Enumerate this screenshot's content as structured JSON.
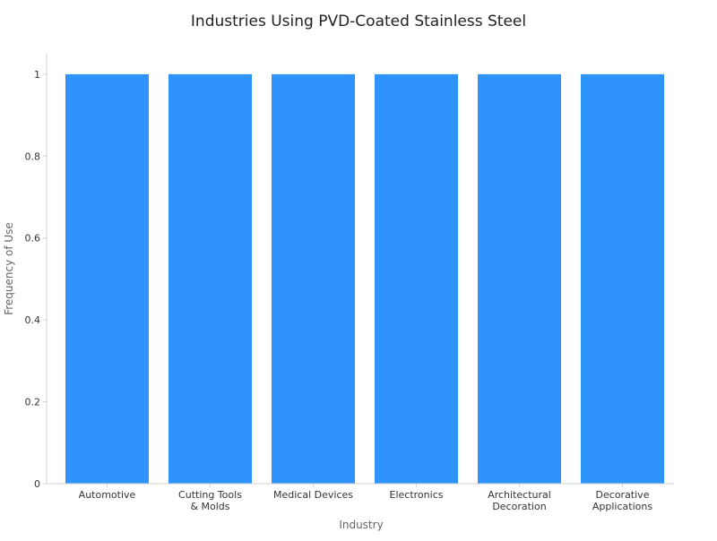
{
  "chart_data": {
    "type": "bar",
    "title": "Industries Using PVD-Coated Stainless Steel",
    "xlabel": "Industry",
    "ylabel": "Frequency of Use",
    "categories": [
      "Automotive",
      "Cutting Tools\n& Molds",
      "Medical Devices",
      "Electronics",
      "Architectural\nDecoration",
      "Decorative\nApplications"
    ],
    "values": [
      1,
      1,
      1,
      1,
      1,
      1
    ],
    "ylim": [
      0,
      1.05
    ],
    "yticks": [
      0,
      0.2,
      0.4,
      0.6,
      0.8,
      1
    ],
    "ytick_labels": [
      "0",
      "0.2",
      "0.4",
      "0.6",
      "0.8",
      "1"
    ],
    "grid": false,
    "legend": "none",
    "colors": {
      "bar": "#2E93FA",
      "axis": "#D0D0D0",
      "tick_text": "#333333",
      "label_text": "#666666"
    }
  }
}
